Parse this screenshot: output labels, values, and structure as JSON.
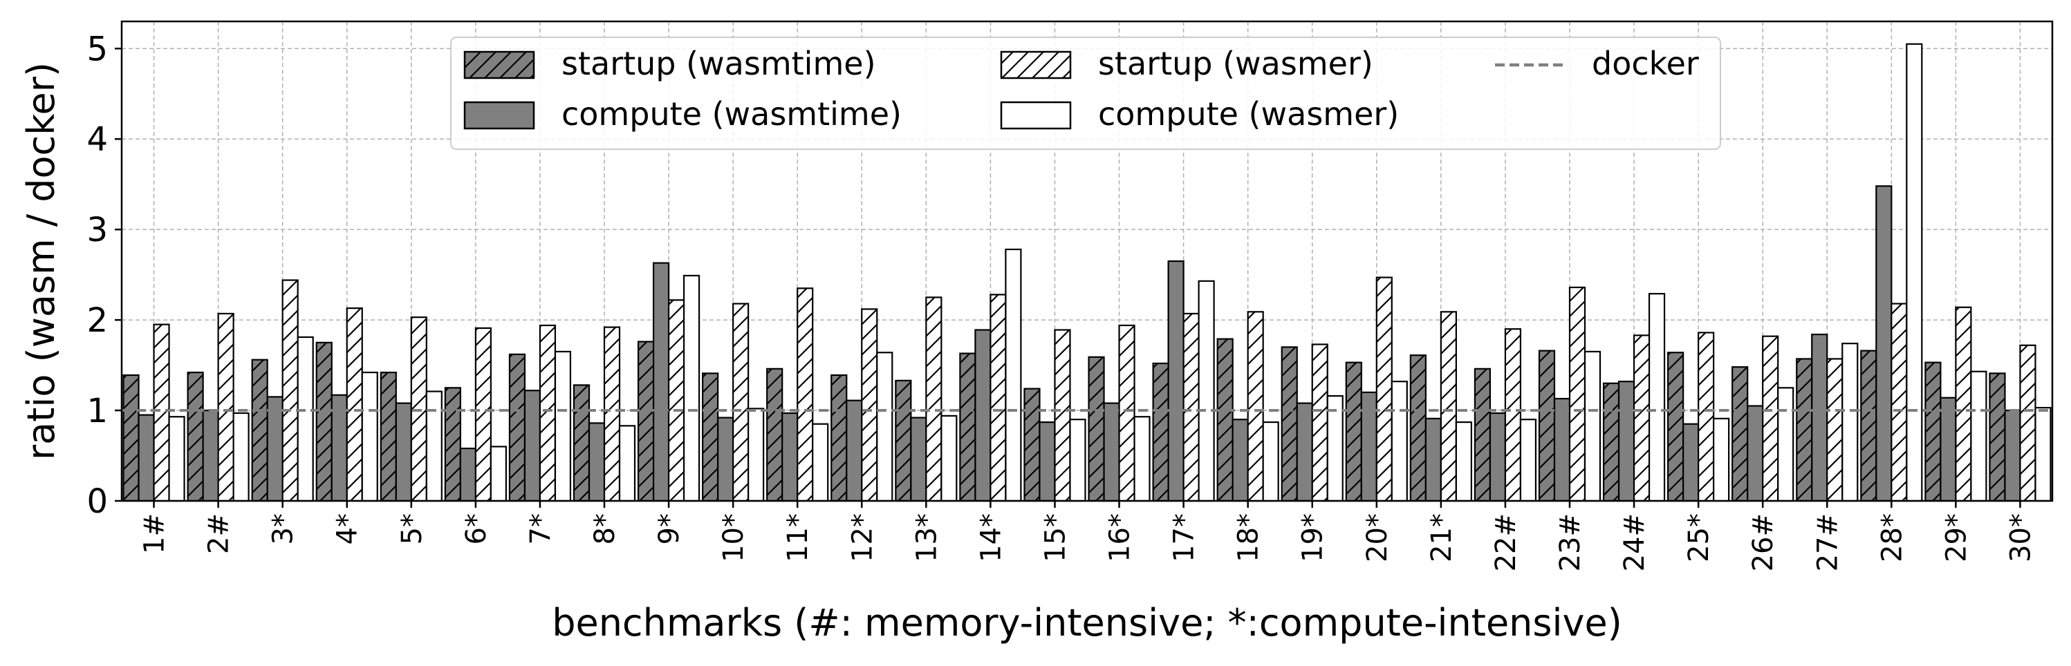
{
  "chart_data": {
    "type": "bar",
    "xlabel": "benchmarks (#: memory-intensive; *:compute-intensive)",
    "ylabel": "ratio (wasm / docker)",
    "ylim": [
      0,
      5.3
    ],
    "yticks": [
      "0",
      "1",
      "2",
      "3",
      "4",
      "5"
    ],
    "grid": true,
    "legend_position": "top-center",
    "categories": [
      "1#",
      "2#",
      "3*",
      "4*",
      "5*",
      "6*",
      "7*",
      "8*",
      "9*",
      "10*",
      "11*",
      "12*",
      "13*",
      "14*",
      "15*",
      "16*",
      "17*",
      "18*",
      "19*",
      "20*",
      "21*",
      "22#",
      "23#",
      "24#",
      "25*",
      "26#",
      "27#",
      "28*",
      "29*",
      "30*"
    ],
    "series": [
      {
        "name": "startup (wasmtime)",
        "fill": "#808080",
        "hatch": true,
        "values": [
          1.39,
          1.42,
          1.56,
          1.75,
          1.42,
          1.25,
          1.62,
          1.28,
          1.76,
          1.41,
          1.46,
          1.39,
          1.33,
          1.63,
          1.24,
          1.59,
          1.52,
          1.79,
          1.7,
          1.53,
          1.61,
          1.46,
          1.66,
          1.3,
          1.64,
          1.48,
          1.57,
          1.66,
          1.53,
          1.41
        ]
      },
      {
        "name": "compute (wasmtime)",
        "fill": "#808080",
        "hatch": false,
        "values": [
          0.95,
          1.0,
          1.15,
          1.17,
          1.08,
          0.58,
          1.22,
          0.86,
          2.63,
          0.92,
          0.97,
          1.11,
          0.92,
          1.89,
          0.87,
          1.08,
          2.65,
          0.9,
          1.08,
          1.2,
          0.91,
          0.97,
          1.13,
          1.32,
          0.85,
          1.05,
          1.84,
          3.48,
          1.14,
          1.0
        ]
      },
      {
        "name": "startup (wasmer)",
        "fill": "#ffffff",
        "hatch": true,
        "values": [
          1.95,
          2.07,
          2.44,
          2.13,
          2.03,
          1.91,
          1.94,
          1.92,
          2.22,
          2.18,
          2.35,
          2.12,
          2.25,
          2.28,
          1.89,
          1.94,
          2.07,
          2.09,
          1.73,
          2.47,
          2.09,
          1.9,
          2.36,
          1.83,
          1.86,
          1.82,
          1.57,
          2.18,
          2.14,
          1.72
        ]
      },
      {
        "name": "compute (wasmer)",
        "fill": "#ffffff",
        "hatch": false,
        "values": [
          0.93,
          0.97,
          1.81,
          1.42,
          1.21,
          0.6,
          1.65,
          0.83,
          2.49,
          1.02,
          0.85,
          1.64,
          0.94,
          2.78,
          0.9,
          0.93,
          2.43,
          0.87,
          1.16,
          1.32,
          0.87,
          0.9,
          1.65,
          2.29,
          0.91,
          1.25,
          1.74,
          5.05,
          1.43,
          1.03
        ]
      }
    ],
    "reference_line": {
      "name": "docker",
      "value": 1.0,
      "color": "#808080",
      "style": "dashed"
    }
  }
}
